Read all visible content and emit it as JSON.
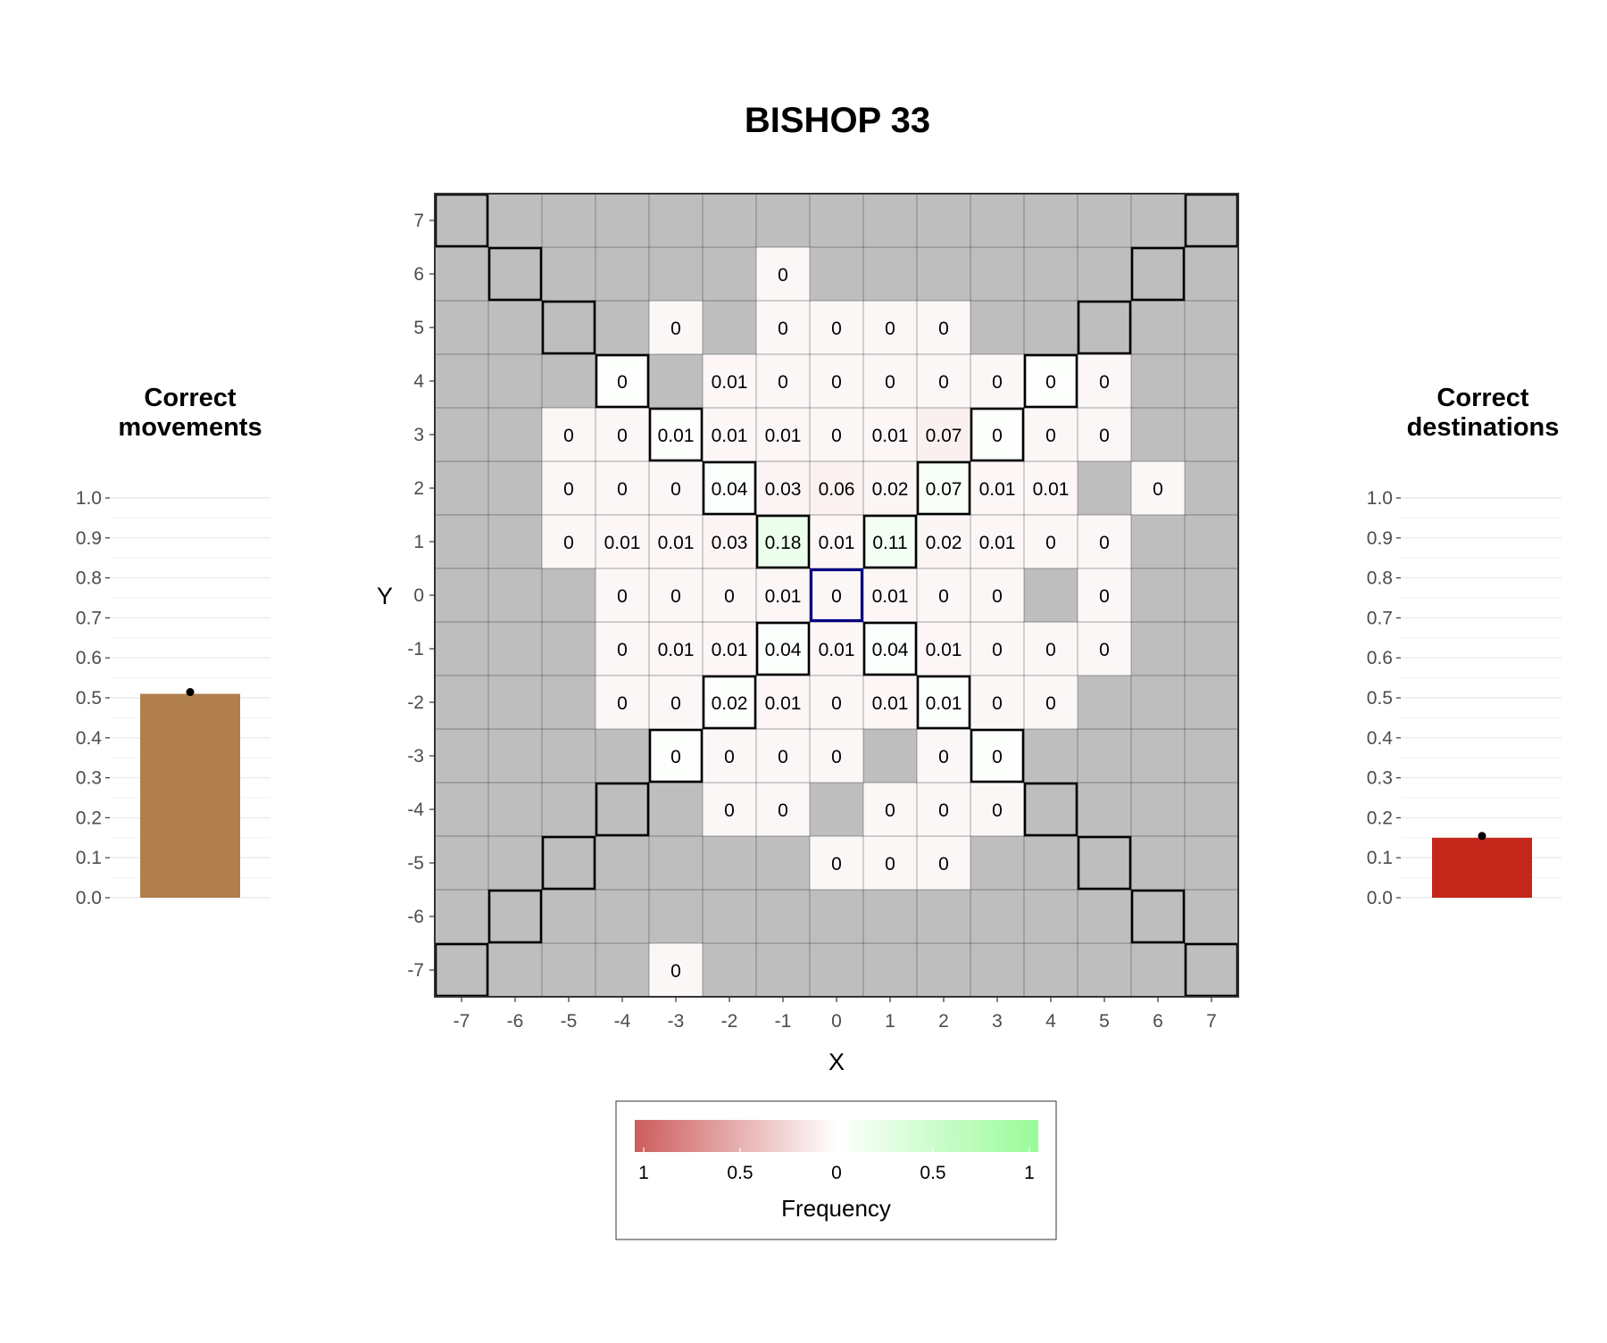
{
  "title": "BISHOP 33",
  "colors": {
    "panel_gray": "#bebebe",
    "negative": "#cd5c5c",
    "neutral": "#ffffff",
    "positive": "#98fb98",
    "correct_movements_bar": "#b07f4c",
    "correct_destinations_bar": "#c4261a",
    "start_cell_border": "#000080",
    "target_cell_border": "#000000"
  },
  "chart_data": [
    {
      "id": "correct-movements",
      "type": "bar",
      "title": "Correct\nmovements",
      "values": [
        0.51
      ],
      "ylim": [
        0,
        1
      ],
      "yticks": [
        "0.0",
        "0.1",
        "0.2",
        "0.3",
        "0.4",
        "0.5",
        "0.6",
        "0.7",
        "0.8",
        "0.9",
        "1.0"
      ],
      "grid": true
    },
    {
      "id": "heatmap",
      "type": "heatmap",
      "xlabel": "X",
      "ylabel": "Y",
      "x_range": [
        -7,
        7
      ],
      "y_range": [
        -7,
        7
      ],
      "xticks": [
        "-7",
        "-6",
        "-5",
        "-4",
        "-3",
        "-2",
        "-1",
        "0",
        "1",
        "2",
        "3",
        "4",
        "5",
        "6",
        "7"
      ],
      "yticks": [
        "-7",
        "-6",
        "-5",
        "-4",
        "-3",
        "-2",
        "-1",
        "0",
        "1",
        "2",
        "3",
        "4",
        "5",
        "6",
        "7"
      ],
      "start": [
        0,
        0
      ],
      "cells": [
        {
          "x": -1,
          "y": 6,
          "label": "0",
          "value": 0.003
        },
        {
          "x": -3,
          "y": 5,
          "label": "0",
          "value": 0.003
        },
        {
          "x": -1,
          "y": 5,
          "label": "0",
          "value": 0.003
        },
        {
          "x": 0,
          "y": 5,
          "label": "0",
          "value": 0.003
        },
        {
          "x": 1,
          "y": 5,
          "label": "0",
          "value": 0.003
        },
        {
          "x": 2,
          "y": 5,
          "label": "0",
          "value": 0.003
        },
        {
          "x": -4,
          "y": 4,
          "label": "0",
          "value": 0.003
        },
        {
          "x": -2,
          "y": 4,
          "label": "0.01",
          "value": 0.01
        },
        {
          "x": -1,
          "y": 4,
          "label": "0",
          "value": 0.003
        },
        {
          "x": 0,
          "y": 4,
          "label": "0",
          "value": 0.003
        },
        {
          "x": 1,
          "y": 4,
          "label": "0",
          "value": 0.003
        },
        {
          "x": 2,
          "y": 4,
          "label": "0",
          "value": 0.003
        },
        {
          "x": 3,
          "y": 4,
          "label": "0",
          "value": 0.003
        },
        {
          "x": 4,
          "y": 4,
          "label": "0",
          "value": 0.003
        },
        {
          "x": 5,
          "y": 4,
          "label": "0",
          "value": 0.003
        },
        {
          "x": -5,
          "y": 3,
          "label": "0",
          "value": 0.003
        },
        {
          "x": -4,
          "y": 3,
          "label": "0",
          "value": 0.003
        },
        {
          "x": -3,
          "y": 3,
          "label": "0.01",
          "value": 0.01
        },
        {
          "x": -2,
          "y": 3,
          "label": "0.01",
          "value": 0.01
        },
        {
          "x": -1,
          "y": 3,
          "label": "0.01",
          "value": 0.01
        },
        {
          "x": 0,
          "y": 3,
          "label": "0",
          "value": 0.003
        },
        {
          "x": 1,
          "y": 3,
          "label": "0.01",
          "value": 0.01
        },
        {
          "x": 2,
          "y": 3,
          "label": "0.07",
          "value": 0.07
        },
        {
          "x": 3,
          "y": 3,
          "label": "0",
          "value": 0.003
        },
        {
          "x": 4,
          "y": 3,
          "label": "0",
          "value": 0.003
        },
        {
          "x": 5,
          "y": 3,
          "label": "0",
          "value": 0.003
        },
        {
          "x": -5,
          "y": 2,
          "label": "0",
          "value": 0.003
        },
        {
          "x": -4,
          "y": 2,
          "label": "0",
          "value": 0.003
        },
        {
          "x": -3,
          "y": 2,
          "label": "0",
          "value": 0.003
        },
        {
          "x": -2,
          "y": 2,
          "label": "0.04",
          "value": 0.04
        },
        {
          "x": -1,
          "y": 2,
          "label": "0.03",
          "value": 0.03
        },
        {
          "x": 0,
          "y": 2,
          "label": "0.06",
          "value": 0.06
        },
        {
          "x": 1,
          "y": 2,
          "label": "0.02",
          "value": 0.02
        },
        {
          "x": 2,
          "y": 2,
          "label": "0.07",
          "value": 0.07
        },
        {
          "x": 3,
          "y": 2,
          "label": "0.01",
          "value": 0.01
        },
        {
          "x": 4,
          "y": 2,
          "label": "0.01",
          "value": 0.01
        },
        {
          "x": 6,
          "y": 2,
          "label": "0",
          "value": 0.003
        },
        {
          "x": -5,
          "y": 1,
          "label": "0",
          "value": 0.003
        },
        {
          "x": -4,
          "y": 1,
          "label": "0.01",
          "value": 0.01
        },
        {
          "x": -3,
          "y": 1,
          "label": "0.01",
          "value": 0.01
        },
        {
          "x": -2,
          "y": 1,
          "label": "0.03",
          "value": 0.03
        },
        {
          "x": -1,
          "y": 1,
          "label": "0.18",
          "value": 0.18
        },
        {
          "x": 0,
          "y": 1,
          "label": "0.01",
          "value": 0.01
        },
        {
          "x": 1,
          "y": 1,
          "label": "0.11",
          "value": 0.11
        },
        {
          "x": 2,
          "y": 1,
          "label": "0.02",
          "value": 0.02
        },
        {
          "x": 3,
          "y": 1,
          "label": "0.01",
          "value": 0.01
        },
        {
          "x": 4,
          "y": 1,
          "label": "0",
          "value": 0.003
        },
        {
          "x": 5,
          "y": 1,
          "label": "0",
          "value": 0.003
        },
        {
          "x": -4,
          "y": 0,
          "label": "0",
          "value": 0.003
        },
        {
          "x": -3,
          "y": 0,
          "label": "0",
          "value": 0.003
        },
        {
          "x": -2,
          "y": 0,
          "label": "0",
          "value": 0.003
        },
        {
          "x": -1,
          "y": 0,
          "label": "0.01",
          "value": 0.01
        },
        {
          "x": 0,
          "y": 0,
          "label": "0",
          "value": 0.003
        },
        {
          "x": 1,
          "y": 0,
          "label": "0.01",
          "value": 0.01
        },
        {
          "x": 2,
          "y": 0,
          "label": "0",
          "value": 0.003
        },
        {
          "x": 3,
          "y": 0,
          "label": "0",
          "value": 0.003
        },
        {
          "x": 5,
          "y": 0,
          "label": "0",
          "value": 0.003
        },
        {
          "x": -4,
          "y": -1,
          "label": "0",
          "value": 0.003
        },
        {
          "x": -3,
          "y": -1,
          "label": "0.01",
          "value": 0.01
        },
        {
          "x": -2,
          "y": -1,
          "label": "0.01",
          "value": 0.01
        },
        {
          "x": -1,
          "y": -1,
          "label": "0.04",
          "value": 0.04
        },
        {
          "x": 0,
          "y": -1,
          "label": "0.01",
          "value": 0.01
        },
        {
          "x": 1,
          "y": -1,
          "label": "0.04",
          "value": 0.04
        },
        {
          "x": 2,
          "y": -1,
          "label": "0.01",
          "value": 0.01
        },
        {
          "x": 3,
          "y": -1,
          "label": "0",
          "value": 0.003
        },
        {
          "x": 4,
          "y": -1,
          "label": "0",
          "value": 0.003
        },
        {
          "x": 5,
          "y": -1,
          "label": "0",
          "value": 0.003
        },
        {
          "x": -4,
          "y": -2,
          "label": "0",
          "value": 0.003
        },
        {
          "x": -3,
          "y": -2,
          "label": "0",
          "value": 0.003
        },
        {
          "x": -2,
          "y": -2,
          "label": "0.02",
          "value": 0.02
        },
        {
          "x": -1,
          "y": -2,
          "label": "0.01",
          "value": 0.01
        },
        {
          "x": 0,
          "y": -2,
          "label": "0",
          "value": 0.003
        },
        {
          "x": 1,
          "y": -2,
          "label": "0.01",
          "value": 0.01
        },
        {
          "x": 2,
          "y": -2,
          "label": "0.01",
          "value": 0.01
        },
        {
          "x": 3,
          "y": -2,
          "label": "0",
          "value": 0.003
        },
        {
          "x": 4,
          "y": -2,
          "label": "0",
          "value": 0.003
        },
        {
          "x": -3,
          "y": -3,
          "label": "0",
          "value": 0.003
        },
        {
          "x": -2,
          "y": -3,
          "label": "0",
          "value": 0.003
        },
        {
          "x": -1,
          "y": -3,
          "label": "0",
          "value": 0.003
        },
        {
          "x": 0,
          "y": -3,
          "label": "0",
          "value": 0.003
        },
        {
          "x": 2,
          "y": -3,
          "label": "0",
          "value": 0.003
        },
        {
          "x": 3,
          "y": -3,
          "label": "0",
          "value": 0.003
        },
        {
          "x": -2,
          "y": -4,
          "label": "0",
          "value": 0.003
        },
        {
          "x": -1,
          "y": -4,
          "label": "0",
          "value": 0.003
        },
        {
          "x": 1,
          "y": -4,
          "label": "0",
          "value": 0.003
        },
        {
          "x": 2,
          "y": -4,
          "label": "0",
          "value": 0.003
        },
        {
          "x": 3,
          "y": -4,
          "label": "0",
          "value": 0.003
        },
        {
          "x": 0,
          "y": -5,
          "label": "0",
          "value": 0.003
        },
        {
          "x": 1,
          "y": -5,
          "label": "0",
          "value": 0.003
        },
        {
          "x": 2,
          "y": -5,
          "label": "0",
          "value": 0.003
        },
        {
          "x": -3,
          "y": -7,
          "label": "0",
          "value": 0.003
        }
      ],
      "correct_cells": [
        [
          -7,
          7
        ],
        [
          -6,
          6
        ],
        [
          -5,
          5
        ],
        [
          -4,
          4
        ],
        [
          -3,
          3
        ],
        [
          -2,
          2
        ],
        [
          -1,
          1
        ],
        [
          1,
          1
        ],
        [
          2,
          2
        ],
        [
          3,
          3
        ],
        [
          4,
          4
        ],
        [
          5,
          5
        ],
        [
          6,
          6
        ],
        [
          7,
          7
        ],
        [
          -1,
          -1
        ],
        [
          -2,
          -2
        ],
        [
          -3,
          -3
        ],
        [
          -4,
          -4
        ],
        [
          -5,
          -5
        ],
        [
          -6,
          -6
        ],
        [
          -7,
          -7
        ],
        [
          1,
          -1
        ],
        [
          2,
          -2
        ],
        [
          3,
          -3
        ],
        [
          4,
          -4
        ],
        [
          5,
          -5
        ],
        [
          6,
          -6
        ],
        [
          7,
          -7
        ]
      ]
    },
    {
      "id": "correct-destinations",
      "type": "bar",
      "title": "Correct\ndestinations",
      "values": [
        0.15
      ],
      "ylim": [
        0,
        1
      ],
      "yticks": [
        "0.0",
        "0.1",
        "0.2",
        "0.3",
        "0.4",
        "0.5",
        "0.6",
        "0.7",
        "0.8",
        "0.9",
        "1.0"
      ],
      "grid": true
    }
  ],
  "legend": {
    "title": "Frequency",
    "ticks": [
      "1",
      "0.5",
      "0",
      "0.5",
      "1"
    ]
  }
}
